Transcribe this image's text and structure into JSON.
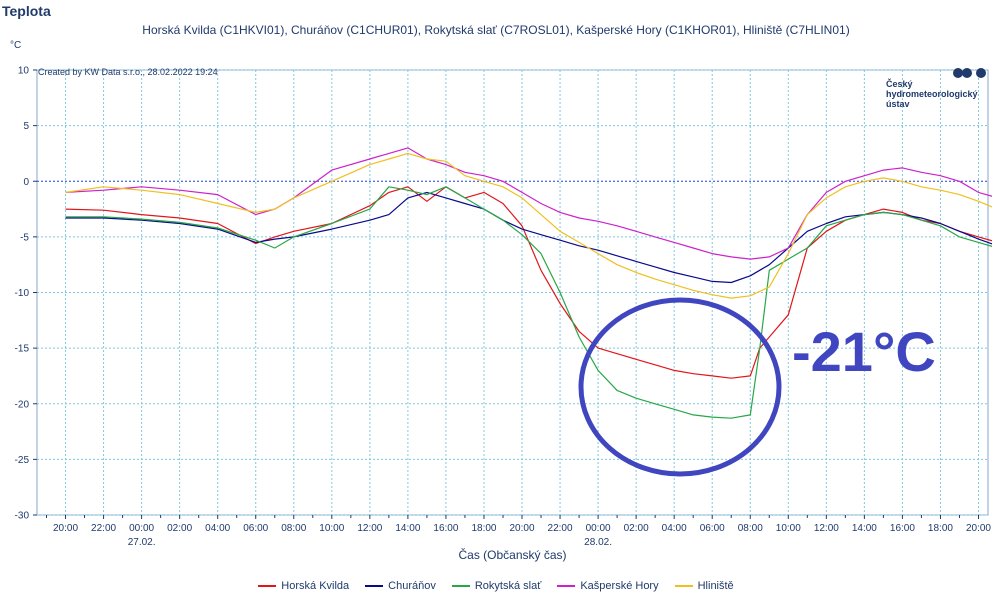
{
  "header": {
    "title": "Teplota",
    "subtitle": "Horská Kvilda (C1HKVI01), Churáňov (C1CHUR01), Rokytská slať (C7ROSL01), Kašperské Hory (C1KHOR01), Hliniště (C7HLIN01)"
  },
  "credit": "Created by KW Data s.r.o., 28.02.2022 19:24",
  "logo": {
    "line1": "Český",
    "line2": "hydrometeorologický",
    "line3": "ústav"
  },
  "annotation": {
    "text": "-21°C",
    "color": "#3f46c0"
  },
  "chart_data": {
    "type": "line",
    "title": "Teplota",
    "ylabel": "°C",
    "xlabel": "Čas (Občanský čas)",
    "ylim": [
      -30,
      10
    ],
    "yticks": [
      10,
      5,
      0,
      -5,
      -10,
      -15,
      -20,
      -25,
      -30
    ],
    "xlim": [
      "26.02. 18:30",
      "28.02. 20:30"
    ],
    "xtick_labels": [
      "20:00",
      "22:00",
      "00:00",
      "02:00",
      "04:00",
      "06:00",
      "08:00",
      "10:00",
      "12:00",
      "14:00",
      "16:00",
      "18:00",
      "20:00",
      "22:00",
      "00:00",
      "02:00",
      "04:00",
      "06:00",
      "08:00",
      "10:00",
      "12:00",
      "14:00",
      "16:00",
      "18:00",
      "20:00"
    ],
    "date_labels": [
      {
        "at": "00:00",
        "text": "27.02."
      },
      {
        "at": "00:00",
        "text": "28.02."
      }
    ],
    "grid": true,
    "legend_position": "bottom",
    "series": [
      {
        "name": "Horská Kvilda",
        "color": "#e0161b",
        "x": [
          0,
          2,
          4,
          6,
          8,
          10,
          11,
          12,
          14,
          16,
          17,
          18,
          19,
          20,
          21,
          22,
          23,
          24,
          25,
          26,
          27,
          28,
          29,
          30,
          31,
          32,
          33,
          34,
          35,
          36,
          36.5,
          37,
          38,
          39,
          40,
          41,
          42,
          43,
          44,
          45,
          46,
          47,
          48,
          49,
          50
        ],
        "y": [
          -2.5,
          -2.6,
          -3.0,
          -3.3,
          -3.8,
          -5.6,
          -5.0,
          -4.5,
          -3.8,
          -2.2,
          -1.0,
          -0.5,
          -1.8,
          -0.5,
          -1.5,
          -1.0,
          -2.0,
          -4.0,
          -8.0,
          -11.0,
          -13.5,
          -15.0,
          -15.5,
          -16.0,
          -16.5,
          -17.0,
          -17.3,
          -17.5,
          -17.7,
          -17.5,
          -15.0,
          -14.0,
          -12.0,
          -6.0,
          -4.5,
          -3.5,
          -3.0,
          -2.5,
          -2.8,
          -3.5,
          -3.8,
          -4.5,
          -5.0,
          -5.5,
          -5.5
        ]
      },
      {
        "name": "Churáňov",
        "color": "#0a0a8c",
        "x": [
          0,
          2,
          4,
          6,
          8,
          10,
          11,
          12,
          14,
          16,
          17,
          18,
          19,
          20,
          21,
          22,
          23,
          24,
          25,
          26,
          27,
          28,
          29,
          30,
          31,
          32,
          33,
          34,
          35,
          36,
          37,
          38,
          39,
          40,
          41,
          42,
          43,
          44,
          45,
          46,
          47,
          48,
          49,
          50
        ],
        "y": [
          -3.3,
          -3.3,
          -3.5,
          -3.8,
          -4.3,
          -5.5,
          -5.2,
          -5.0,
          -4.3,
          -3.5,
          -3.0,
          -1.5,
          -1.0,
          -1.5,
          -2.0,
          -2.5,
          -3.5,
          -4.3,
          -4.8,
          -5.3,
          -5.8,
          -6.2,
          -6.7,
          -7.2,
          -7.7,
          -8.2,
          -8.6,
          -9.0,
          -9.1,
          -8.5,
          -7.5,
          -6.0,
          -4.5,
          -3.8,
          -3.2,
          -3.0,
          -2.8,
          -3.0,
          -3.3,
          -3.8,
          -4.5,
          -5.2,
          -5.8,
          -6.2
        ]
      },
      {
        "name": "Rokytská slať",
        "color": "#28a745",
        "x": [
          0,
          2,
          4,
          6,
          8,
          10,
          11,
          12,
          14,
          16,
          17,
          18,
          19,
          20,
          21,
          22,
          23,
          24,
          25,
          26,
          27,
          28,
          29,
          30,
          31,
          32,
          33,
          34,
          35,
          36,
          36.5,
          37,
          38,
          39,
          40,
          41,
          42,
          43,
          44,
          45,
          46,
          47,
          48,
          49,
          50
        ],
        "y": [
          -3.2,
          -3.2,
          -3.4,
          -3.7,
          -4.2,
          -5.3,
          -6.0,
          -5.0,
          -3.8,
          -2.5,
          -0.5,
          -0.8,
          -1.2,
          -0.5,
          -1.5,
          -2.5,
          -3.5,
          -4.8,
          -6.5,
          -10.0,
          -14.0,
          -17.0,
          -18.8,
          -19.5,
          -20.0,
          -20.5,
          -21.0,
          -21.2,
          -21.3,
          -21.0,
          -15.0,
          -8.0,
          -7.0,
          -6.0,
          -4.0,
          -3.5,
          -3.0,
          -2.8,
          -3.0,
          -3.5,
          -4.0,
          -5.0,
          -5.5,
          -6.0,
          -6.2
        ]
      },
      {
        "name": "Kašperské Hory",
        "color": "#cc22cc",
        "x": [
          0,
          2,
          4,
          6,
          8,
          10,
          11,
          12,
          14,
          16,
          17,
          18,
          19,
          20,
          21,
          22,
          23,
          24,
          25,
          26,
          27,
          28,
          29,
          30,
          31,
          32,
          33,
          34,
          35,
          36,
          37,
          38,
          39,
          40,
          41,
          42,
          43,
          44,
          45,
          46,
          47,
          48,
          49,
          50
        ],
        "y": [
          -1.0,
          -0.8,
          -0.5,
          -0.8,
          -1.2,
          -3.0,
          -2.5,
          -1.5,
          1.0,
          2.0,
          2.5,
          3.0,
          2.0,
          1.5,
          0.8,
          0.5,
          0.0,
          -1.0,
          -2.0,
          -2.8,
          -3.3,
          -3.6,
          -4.0,
          -4.5,
          -5.0,
          -5.5,
          -6.0,
          -6.5,
          -6.8,
          -7.0,
          -6.8,
          -6.0,
          -3.0,
          -1.0,
          0.0,
          0.5,
          1.0,
          1.2,
          0.8,
          0.5,
          0.0,
          -1.0,
          -1.5,
          -2.2
        ]
      },
      {
        "name": "Hliniště",
        "color": "#f0c020",
        "x": [
          0,
          2,
          4,
          6,
          8,
          10,
          11,
          12,
          14,
          16,
          17,
          18,
          19,
          20,
          21,
          22,
          23,
          24,
          25,
          26,
          27,
          28,
          29,
          30,
          31,
          32,
          33,
          34,
          35,
          36,
          37,
          38,
          39,
          40,
          41,
          42,
          43,
          44,
          45,
          46,
          47,
          48,
          49,
          50
        ],
        "y": [
          -1.0,
          -0.5,
          -0.8,
          -1.2,
          -2.0,
          -2.8,
          -2.5,
          -1.5,
          0.0,
          1.5,
          2.0,
          2.5,
          2.0,
          1.8,
          0.5,
          0.0,
          -0.5,
          -1.5,
          -3.0,
          -4.5,
          -5.5,
          -6.5,
          -7.5,
          -8.2,
          -8.8,
          -9.3,
          -9.8,
          -10.2,
          -10.5,
          -10.3,
          -9.5,
          -6.5,
          -3.0,
          -1.5,
          -0.5,
          0.0,
          0.3,
          0.0,
          -0.5,
          -0.8,
          -1.2,
          -1.8,
          -2.5,
          -3.3
        ]
      }
    ]
  }
}
